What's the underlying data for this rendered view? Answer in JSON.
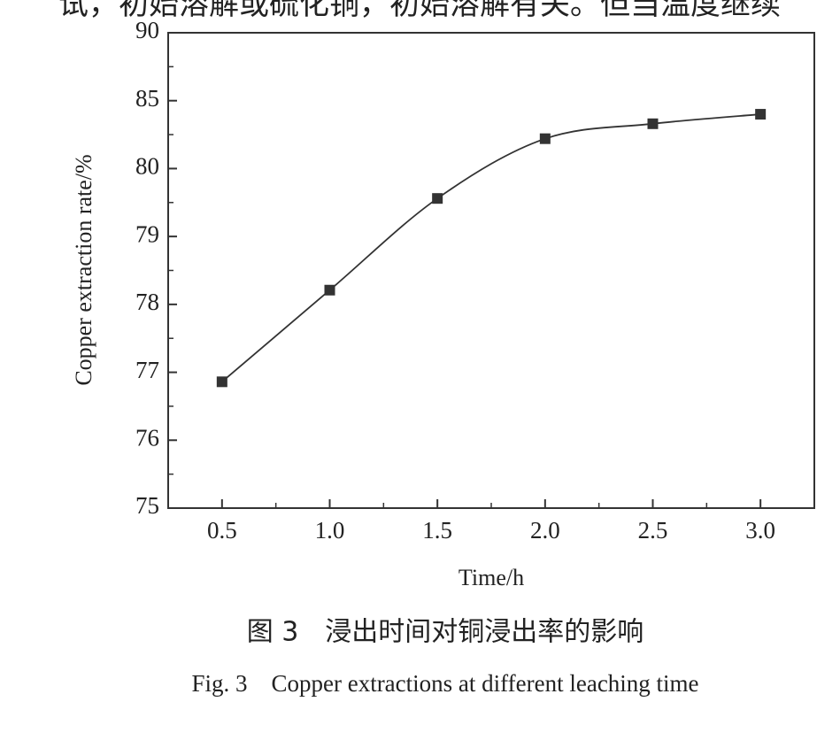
{
  "header_text": "试，初始溶解或硫化铜，初始溶解有关。但当温度继续",
  "chart_data": {
    "type": "line",
    "x_label": "Time/h",
    "y_label": "Copper extraction rate/%",
    "caption_cn": "图 3　浸出时间对铜浸出率的影响",
    "caption_en": "Fig. 3　Copper extractions at different leaching time",
    "x": [
      0.5,
      1.0,
      1.5,
      2.0,
      2.5,
      3.0
    ],
    "series": [
      {
        "color": "#333333",
        "values": [
          76.86,
          78.21,
          79.56,
          82.2,
          83.3,
          84.0
        ]
      }
    ],
    "xlim": [
      0.25,
      3.25
    ],
    "xticks": [
      0.5,
      {
        "value": 1.0,
        "label": "1.0"
      },
      1.5,
      {
        "value": 2.0,
        "label": "2.0"
      },
      2.5,
      {
        "value": 3.0,
        "label": "3.0"
      }
    ],
    "ylim": [
      75,
      90
    ],
    "yticks": [
      75,
      76,
      77,
      78,
      79,
      80,
      85,
      90
    ]
  }
}
